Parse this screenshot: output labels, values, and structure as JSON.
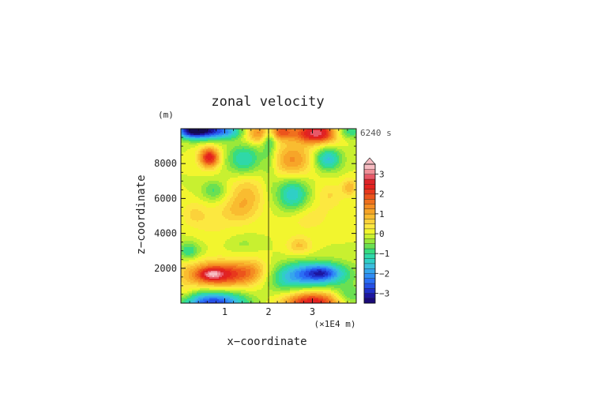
{
  "chart_data": {
    "type": "heatmap",
    "title": "zonal velocity",
    "xlabel": "x−coordinate",
    "ylabel": "z−coordinate",
    "x_unit": "(×1E4 m)",
    "y_unit": "(m)",
    "time_label": "6240 s",
    "xlim": [
      0,
      4
    ],
    "ylim": [
      0,
      10000
    ],
    "x_ticks": [
      1,
      2,
      3
    ],
    "x_tick_labels": [
      "1",
      "2",
      "3"
    ],
    "y_ticks": [
      2000,
      4000,
      6000,
      8000
    ],
    "y_tick_labels": [
      "2000",
      "4000",
      "6000",
      "8000"
    ],
    "colorbar": {
      "levels": [
        -3.5,
        -3.25,
        -3,
        -2.75,
        -2.5,
        -2.25,
        -2,
        -1.75,
        -1.5,
        -1.25,
        -1,
        -0.75,
        -0.5,
        -0.25,
        0,
        0.25,
        0.5,
        0.75,
        1,
        1.25,
        1.5,
        1.75,
        2,
        2.25,
        2.5,
        2.75,
        3,
        3.25,
        3.5
      ],
      "tick_values": [
        -3,
        -2,
        -1,
        0,
        1,
        2,
        3
      ],
      "tick_labels": [
        "−3",
        "−2",
        "−1",
        "0",
        "1",
        "2",
        "3"
      ],
      "colors": [
        "#1a0a78",
        "#1d16a0",
        "#2030c8",
        "#2550e6",
        "#2a6ef5",
        "#2f8cf5",
        "#35a6ec",
        "#3abede",
        "#2fcfc6",
        "#2fd8a8",
        "#38dc80",
        "#6ae052",
        "#9ae83a",
        "#c8f030",
        "#f2f52e",
        "#fce840",
        "#fbd23a",
        "#f9bc30",
        "#f7a528",
        "#f48c22",
        "#f0701e",
        "#ec541c",
        "#e8381c",
        "#e4221e",
        "#de2428",
        "#e85868",
        "#f09098",
        "#f7bcc2"
      ],
      "under_color": "#140a50",
      "over_color": "#f7bcc2"
    },
    "features": [
      {
        "x": 0.5,
        "y": 9900,
        "sx": 0.35,
        "sy": 350,
        "amp": -3.2
      },
      {
        "x": 0.2,
        "y": 9900,
        "sx": 0.2,
        "sy": 300,
        "amp": -1.5
      },
      {
        "x": 1.15,
        "y": 9820,
        "sx": 0.3,
        "sy": 300,
        "amp": -1.3
      },
      {
        "x": 1.8,
        "y": 9750,
        "sx": 0.3,
        "sy": 400,
        "amp": 1.6
      },
      {
        "x": 2.3,
        "y": 9820,
        "sx": 0.2,
        "sy": 300,
        "amp": 1.4
      },
      {
        "x": 3.1,
        "y": 9750,
        "sx": 0.35,
        "sy": 400,
        "amp": 3.0
      },
      {
        "x": 3.8,
        "y": 9820,
        "sx": 0.25,
        "sy": 300,
        "amp": -1.2
      },
      {
        "x": 2.02,
        "y": 9600,
        "sx": 0.12,
        "sy": 450,
        "amp": -1.1
      },
      {
        "x": 0.65,
        "y": 8350,
        "sx": 0.16,
        "sy": 400,
        "amp": 2.5
      },
      {
        "x": 1.45,
        "y": 8250,
        "sx": 0.28,
        "sy": 650,
        "amp": -1.3
      },
      {
        "x": 2.55,
        "y": 8200,
        "sx": 0.33,
        "sy": 700,
        "amp": 1.3
      },
      {
        "x": 3.35,
        "y": 8250,
        "sx": 0.22,
        "sy": 450,
        "amp": -1.6
      },
      {
        "x": 2.02,
        "y": 8700,
        "sx": 0.12,
        "sy": 1300,
        "amp": -0.6
      },
      {
        "x": 0.75,
        "y": 6450,
        "sx": 0.2,
        "sy": 400,
        "amp": -0.8
      },
      {
        "x": 1.5,
        "y": 6150,
        "sx": 0.28,
        "sy": 900,
        "amp": 0.9
      },
      {
        "x": 2.55,
        "y": 6200,
        "sx": 0.26,
        "sy": 700,
        "amp": -1.5
      },
      {
        "x": 3.4,
        "y": 6200,
        "sx": 0.22,
        "sy": 500,
        "amp": 0.5
      },
      {
        "x": 3.85,
        "y": 6650,
        "sx": 0.12,
        "sy": 350,
        "amp": 0.9
      },
      {
        "x": 0.3,
        "y": 5100,
        "sx": 0.2,
        "sy": 500,
        "amp": 0.5
      },
      {
        "x": 0.75,
        "y": 4700,
        "sx": 0.3,
        "sy": 700,
        "amp": 0.35
      },
      {
        "x": 1.25,
        "y": 5300,
        "sx": 0.25,
        "sy": 500,
        "amp": 0.45
      },
      {
        "x": 2.85,
        "y": 4950,
        "sx": 0.4,
        "sy": 600,
        "amp": 0.45
      },
      {
        "x": 0.18,
        "y": 3000,
        "sx": 0.18,
        "sy": 350,
        "amp": -1.0
      },
      {
        "x": 2.7,
        "y": 3300,
        "sx": 0.2,
        "sy": 350,
        "amp": 0.8
      },
      {
        "x": 1.45,
        "y": 3400,
        "sx": 0.25,
        "sy": 350,
        "amp": -0.3
      },
      {
        "x": 0.9,
        "y": 1650,
        "sx": 0.55,
        "sy": 500,
        "amp": 2.4
      },
      {
        "x": 0.7,
        "y": 1650,
        "sx": 0.18,
        "sy": 220,
        "amp": 1.2
      },
      {
        "x": 1.65,
        "y": 1900,
        "sx": 0.25,
        "sy": 500,
        "amp": 0.6
      },
      {
        "x": 3.0,
        "y": 1650,
        "sx": 0.55,
        "sy": 500,
        "amp": -2.4
      },
      {
        "x": 3.25,
        "y": 1750,
        "sx": 0.25,
        "sy": 280,
        "amp": -0.9
      },
      {
        "x": 2.35,
        "y": 1100,
        "sx": 0.3,
        "sy": 500,
        "amp": -0.5
      },
      {
        "x": 0.75,
        "y": 0,
        "sx": 0.5,
        "sy": 450,
        "amp": -2.8
      },
      {
        "x": 3.0,
        "y": 0,
        "sx": 0.45,
        "sy": 450,
        "amp": 2.6
      },
      {
        "x": 3.85,
        "y": 400,
        "sx": 0.25,
        "sy": 400,
        "amp": -0.9
      },
      {
        "x": 0.12,
        "y": 500,
        "sx": 0.15,
        "sy": 400,
        "amp": 0.4
      }
    ]
  }
}
